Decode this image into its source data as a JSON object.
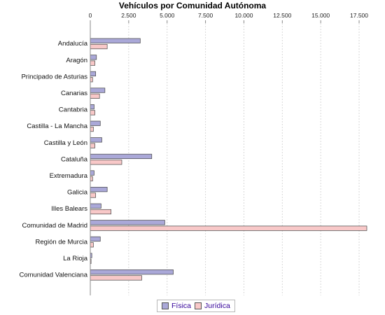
{
  "chart_data": {
    "type": "bar",
    "orientation": "horizontal",
    "title": "Vehículos por Comunidad Autónoma",
    "xlabel": "",
    "ylabel": "",
    "xlim": [
      0,
      18000
    ],
    "xticks": [
      "0",
      "2.500",
      "5.000",
      "7.500",
      "10.000",
      "12.500",
      "15.000",
      "17.500"
    ],
    "xtick_values": [
      0,
      2500,
      5000,
      7500,
      10000,
      12500,
      15000,
      17500
    ],
    "grid": true,
    "legend_position": "bottom",
    "categories": [
      "Andalucía",
      "Aragón",
      "Principado de Asturias",
      "Canarias",
      "Cantabria",
      "Castilla - La Mancha",
      "Castilla y León",
      "Cataluña",
      "Extremadura",
      "Galicia",
      "Illes Balears",
      "Comunidad de Madrid",
      "Región de Murcia",
      "La Rioja",
      "Comunidad Valenciana"
    ],
    "series": [
      {
        "name": "Física",
        "color": "#aaa8d8",
        "values": [
          3250,
          400,
          350,
          950,
          250,
          650,
          750,
          4000,
          250,
          1100,
          700,
          4850,
          650,
          100,
          5400
        ]
      },
      {
        "name": "Jurídica",
        "color": "#f8c8c8",
        "values": [
          1100,
          300,
          150,
          600,
          300,
          200,
          300,
          2050,
          150,
          350,
          1350,
          18000,
          200,
          50,
          3350
        ]
      }
    ]
  }
}
